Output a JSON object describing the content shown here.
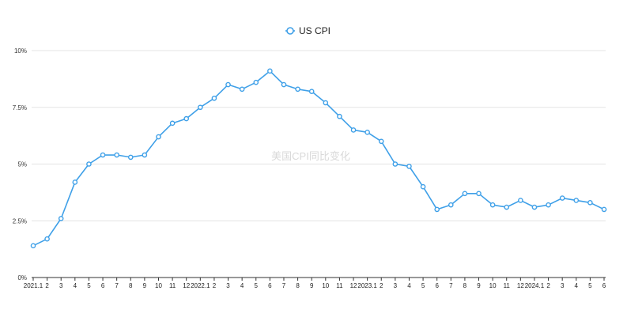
{
  "chart_data": {
    "type": "line",
    "title": "",
    "xlabel": "",
    "ylabel": "",
    "watermark": "美国CPI同比变化",
    "legend": {
      "position": "top-center"
    },
    "grid": {
      "horizontal": true,
      "vertical": false
    },
    "ylim": [
      0,
      10
    ],
    "y_ticks": [
      {
        "value": 0,
        "label": "0%"
      },
      {
        "value": 2.5,
        "label": "2.5%"
      },
      {
        "value": 5,
        "label": "5%"
      },
      {
        "value": 7.5,
        "label": "7.5%"
      },
      {
        "value": 10,
        "label": "10%"
      }
    ],
    "categories": [
      "2021.1",
      "2",
      "3",
      "4",
      "5",
      "6",
      "7",
      "8",
      "9",
      "10",
      "11",
      "12",
      "2022.1",
      "2",
      "3",
      "4",
      "5",
      "6",
      "7",
      "8",
      "9",
      "10",
      "11",
      "12",
      "2023.1",
      "2",
      "3",
      "4",
      "5",
      "6",
      "7",
      "8",
      "9",
      "10",
      "11",
      "12",
      "2024.1",
      "2",
      "3",
      "4",
      "5",
      "6"
    ],
    "series": [
      {
        "name": "US CPI",
        "color": "#3fa0e8",
        "values": [
          1.4,
          1.7,
          2.6,
          4.2,
          5.0,
          5.4,
          5.4,
          5.3,
          5.4,
          6.2,
          6.8,
          7.0,
          7.5,
          7.9,
          8.5,
          8.3,
          8.6,
          9.1,
          8.5,
          8.3,
          8.2,
          7.7,
          7.1,
          6.5,
          6.4,
          6.0,
          5.0,
          4.9,
          4.0,
          3.0,
          3.2,
          3.7,
          3.7,
          3.2,
          3.1,
          3.4,
          3.1,
          3.2,
          3.5,
          3.4,
          3.3,
          3.0
        ]
      }
    ]
  }
}
